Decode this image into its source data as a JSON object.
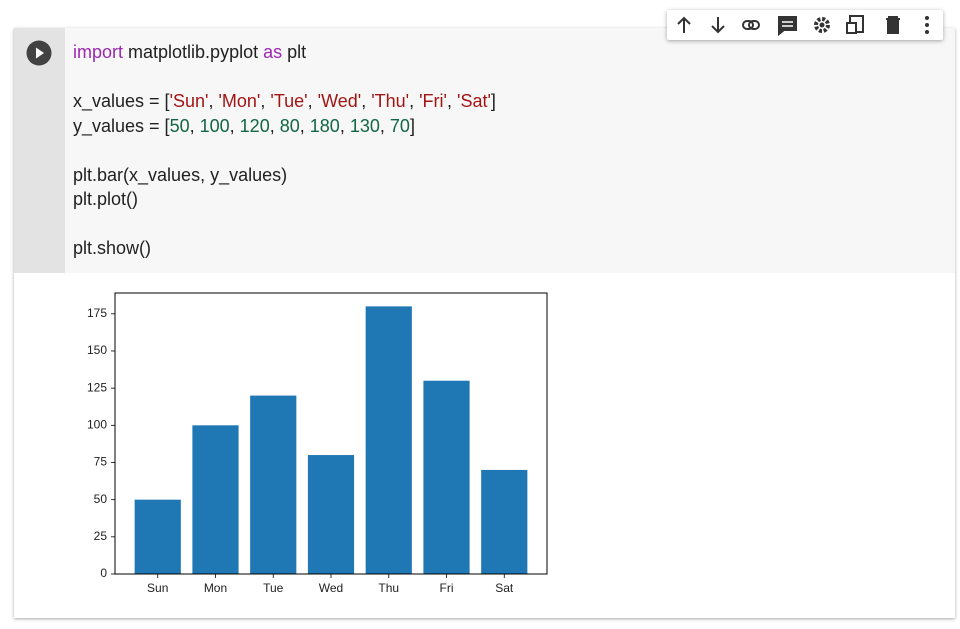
{
  "code": {
    "lines": [
      [
        {
          "text": "import",
          "color": "#9c27b0"
        },
        {
          "text": " matplotlib.pyplot ",
          "color": "#212121"
        },
        {
          "text": "as",
          "color": "#9c27b0"
        },
        {
          "text": " plt",
          "color": "#212121"
        }
      ],
      [],
      [
        {
          "text": "x_values = [",
          "color": "#212121"
        },
        {
          "text": "'Sun'",
          "color": "#a31515"
        },
        {
          "text": ", ",
          "color": "#212121"
        },
        {
          "text": "'Mon'",
          "color": "#a31515"
        },
        {
          "text": ", ",
          "color": "#212121"
        },
        {
          "text": "'Tue'",
          "color": "#a31515"
        },
        {
          "text": ", ",
          "color": "#212121"
        },
        {
          "text": "'Wed'",
          "color": "#a31515"
        },
        {
          "text": ", ",
          "color": "#212121"
        },
        {
          "text": "'Thu'",
          "color": "#a31515"
        },
        {
          "text": ", ",
          "color": "#212121"
        },
        {
          "text": "'Fri'",
          "color": "#a31515"
        },
        {
          "text": ", ",
          "color": "#212121"
        },
        {
          "text": "'Sat'",
          "color": "#a31515"
        },
        {
          "text": "]",
          "color": "#212121"
        }
      ],
      [
        {
          "text": "y_values = [",
          "color": "#212121"
        },
        {
          "text": "50",
          "color": "#116644"
        },
        {
          "text": ", ",
          "color": "#212121"
        },
        {
          "text": "100",
          "color": "#116644"
        },
        {
          "text": ", ",
          "color": "#212121"
        },
        {
          "text": "120",
          "color": "#116644"
        },
        {
          "text": ", ",
          "color": "#212121"
        },
        {
          "text": "80",
          "color": "#116644"
        },
        {
          "text": ", ",
          "color": "#212121"
        },
        {
          "text": "180",
          "color": "#116644"
        },
        {
          "text": ", ",
          "color": "#212121"
        },
        {
          "text": "130",
          "color": "#116644"
        },
        {
          "text": ", ",
          "color": "#212121"
        },
        {
          "text": "70",
          "color": "#116644"
        },
        {
          "text": "]",
          "color": "#212121"
        }
      ],
      [],
      [
        {
          "text": "plt.bar(x_values, y_values)",
          "color": "#212121"
        }
      ],
      [
        {
          "text": "plt.plot()",
          "color": "#212121"
        }
      ],
      [],
      [
        {
          "text": "plt.show()",
          "color": "#212121"
        }
      ]
    ]
  },
  "chart_data": {
    "type": "bar",
    "categories": [
      "Sun",
      "Mon",
      "Tue",
      "Wed",
      "Thu",
      "Fri",
      "Sat"
    ],
    "values": [
      50,
      100,
      120,
      80,
      180,
      130,
      70
    ],
    "color": "#1f77b4",
    "ylim": [
      0,
      189
    ],
    "yticks": [
      0,
      25,
      50,
      75,
      100,
      125,
      150,
      175
    ]
  }
}
